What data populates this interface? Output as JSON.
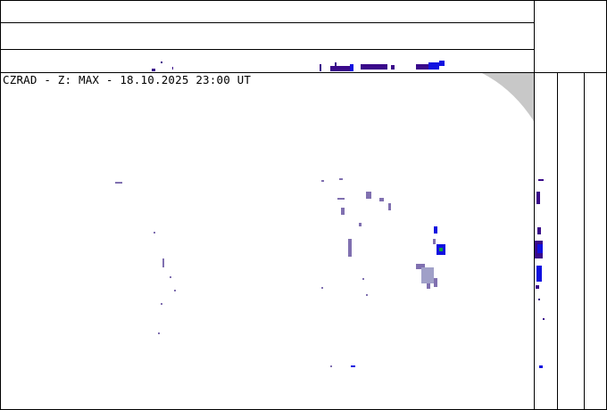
{
  "title": "CZRAD - Z: MAX - 18.10.2025 23:00 UT",
  "colors": {
    "weak_echo": "#8070b0",
    "light_echo": "#a0a0c8",
    "moderate": "#1010e0",
    "dark": "#3a0a8a",
    "strong": "#10a040",
    "out_of_range": "#c8c8c8",
    "frame": "#000000"
  }
}
